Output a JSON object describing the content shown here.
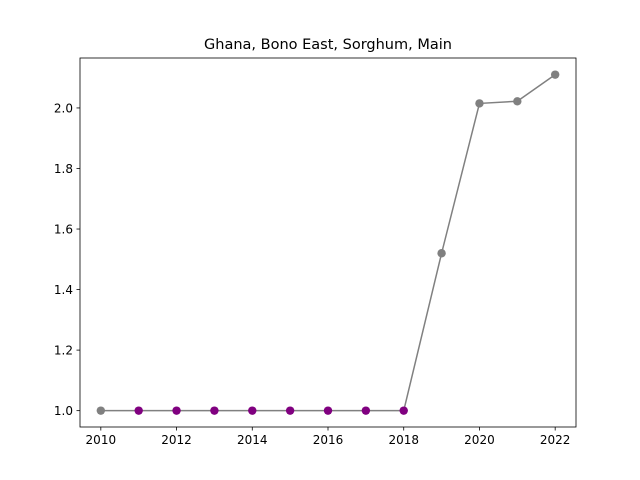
{
  "chart_data": {
    "type": "line",
    "title": "Ghana, Bono East, Sorghum, Main",
    "xlabel": "",
    "ylabel": "",
    "xlim": [
      2009.45,
      2022.55
    ],
    "ylim": [
      0.946,
      2.165
    ],
    "x_ticks": [
      2010,
      2012,
      2014,
      2016,
      2018,
      2020,
      2022
    ],
    "y_ticks": [
      1.0,
      1.2,
      1.4,
      1.6,
      1.8,
      2.0
    ],
    "grid": false,
    "line_color": "#808080",
    "series": [
      {
        "x": [
          2010,
          2011,
          2012,
          2013,
          2014,
          2015,
          2016,
          2017,
          2018,
          2019,
          2020,
          2021,
          2022
        ],
        "values": [
          1.0,
          1.0,
          1.0,
          1.0,
          1.0,
          1.0,
          1.0,
          1.0,
          1.0,
          1.52,
          2.015,
          2.022,
          2.11
        ],
        "marker_colors": [
          "#808080",
          "#800080",
          "#800080",
          "#800080",
          "#800080",
          "#800080",
          "#800080",
          "#800080",
          "#800080",
          "#808080",
          "#808080",
          "#808080",
          "#808080"
        ]
      }
    ]
  }
}
